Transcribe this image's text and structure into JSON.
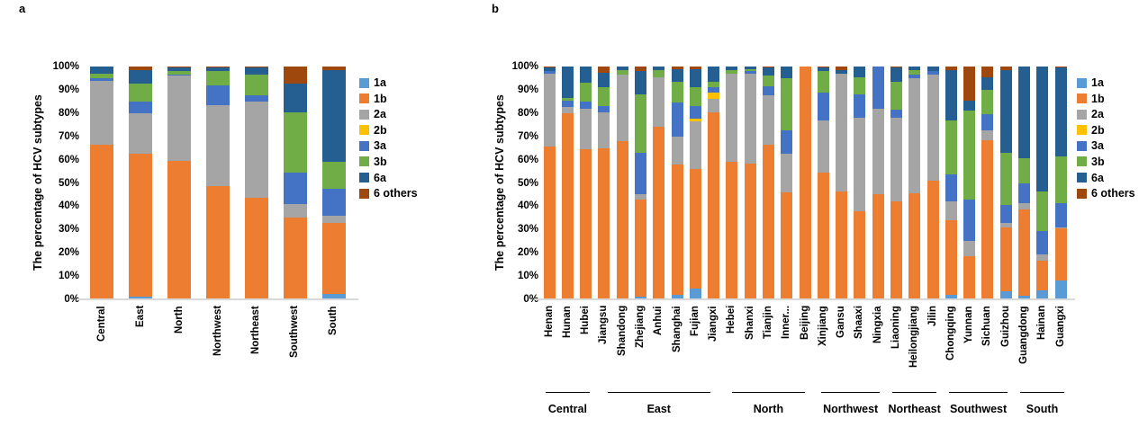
{
  "panels": {
    "a": {
      "letter": "a"
    },
    "b": {
      "letter": "b"
    }
  },
  "axis": {
    "ylabel": "The percentage of HCV subtypes",
    "yticks": [
      "100%",
      "90%",
      "80%",
      "70%",
      "60%",
      "50%",
      "40%",
      "30%",
      "20%",
      "10%",
      "0%"
    ]
  },
  "legend": [
    {
      "label": "1a",
      "color": "#5B9BD5"
    },
    {
      "label": "1b",
      "color": "#ED7D31"
    },
    {
      "label": "2a",
      "color": "#A5A5A5"
    },
    {
      "label": "2b",
      "color": "#FFC000"
    },
    {
      "label": "3a",
      "color": "#4472C4"
    },
    {
      "label": "3b",
      "color": "#70AD47"
    },
    {
      "label": "6a",
      "color": "#255E91"
    },
    {
      "label": "6 others",
      "color": "#9E480E"
    }
  ],
  "chart_data": [
    {
      "type": "bar",
      "stacked": true,
      "panel": "a",
      "title": "",
      "xlabel": "",
      "ylabel": "The percentage of HCV subtypes",
      "ylim": [
        0,
        100
      ],
      "grid": false,
      "legend_position": "right",
      "categories": [
        "Central",
        "East",
        "North",
        "Northwest",
        "Northeast",
        "Southwest",
        "South"
      ],
      "series": [
        {
          "name": "1a",
          "color": "#5B9BD5",
          "values": [
            0,
            1,
            0,
            0,
            0,
            0.5,
            2.5
          ]
        },
        {
          "name": "1b",
          "color": "#ED7D31",
          "values": [
            66.5,
            61.5,
            59.5,
            48.5,
            43.5,
            34.5,
            30.5
          ]
        },
        {
          "name": "2a",
          "color": "#A5A5A5",
          "values": [
            27.5,
            17.5,
            36.5,
            35,
            41.5,
            6,
            3
          ]
        },
        {
          "name": "2b",
          "color": "#FFC000",
          "values": [
            0,
            0,
            0,
            0,
            0,
            0,
            0
          ]
        },
        {
          "name": "3a",
          "color": "#4472C4",
          "values": [
            1,
            5,
            0.5,
            8.5,
            2.5,
            13.5,
            11.5
          ]
        },
        {
          "name": "3b",
          "color": "#70AD47",
          "values": [
            2,
            7.5,
            1.5,
            6,
            9,
            26,
            11.5
          ]
        },
        {
          "name": "6a",
          "color": "#255E91",
          "values": [
            3,
            6,
            1.5,
            1.5,
            3,
            12,
            39.5
          ]
        },
        {
          "name": "6 others",
          "color": "#9E480E",
          "values": [
            0,
            1.5,
            0.5,
            0.5,
            0.5,
            7.5,
            1.5
          ]
        }
      ]
    },
    {
      "type": "bar",
      "stacked": true,
      "panel": "b",
      "title": "",
      "xlabel": "",
      "ylabel": "The percentage of HCV subtypes",
      "ylim": [
        0,
        100
      ],
      "grid": false,
      "legend_position": "right",
      "categories": [
        "Henan",
        "Hunan",
        "Hubei",
        "Jiangsu",
        "Shandong",
        "Zhejiang",
        "Anhui",
        "Shanghai",
        "Fujian",
        "Jiangxi",
        "Hebei",
        "Shanxi",
        "Tianjin",
        "Inner...",
        "Beijing",
        "Xinjiang",
        "Gansu",
        "Shaaxi",
        "Ningxia",
        "Liaoning",
        "Heilongjiang",
        "Jilin",
        "Chongqing",
        "Yunnan",
        "Sichuan",
        "Guizhou",
        "Guangdong",
        "Hainan",
        "Guangxi"
      ],
      "groups": [
        {
          "label": "Central",
          "count": 3
        },
        {
          "label": "East",
          "count": 7
        },
        {
          "label": "North",
          "count": 5
        },
        {
          "label": "Northwest",
          "count": 4
        },
        {
          "label": "Northeast",
          "count": 3
        },
        {
          "label": "Southwest",
          "count": 4
        },
        {
          "label": "South",
          "count": 3
        }
      ],
      "series": [
        {
          "name": "1a",
          "color": "#5B9BD5",
          "values": [
            0,
            0,
            0,
            0,
            0,
            1,
            0,
            2,
            4.5,
            0,
            0,
            0,
            0,
            0,
            0,
            0,
            0,
            0.5,
            0,
            0,
            0,
            0,
            2,
            0,
            0,
            3.5,
            1.5,
            4,
            8
          ]
        },
        {
          "name": "1b",
          "color": "#ED7D31",
          "values": [
            65.5,
            80,
            64.5,
            65,
            68,
            42,
            74,
            56,
            51.5,
            80.5,
            59,
            58.5,
            66.5,
            46,
            100,
            54.5,
            46.5,
            37.5,
            45,
            42,
            45.5,
            51,
            32,
            18.5,
            68.5,
            27.5,
            37,
            12.5,
            22.5
          ]
        },
        {
          "name": "2a",
          "color": "#A5A5A5",
          "values": [
            31.5,
            2.5,
            17.5,
            15.5,
            28.5,
            2,
            21.5,
            12,
            20.5,
            5.5,
            38,
            38.5,
            21,
            16.5,
            0,
            22.5,
            50.5,
            40,
            37,
            36,
            49.5,
            45.5,
            8,
            6.5,
            4,
            2,
            3,
            3,
            0.5
          ]
        },
        {
          "name": "2b",
          "color": "#FFC000",
          "values": [
            0,
            0,
            0,
            0,
            0,
            0,
            0,
            0,
            1,
            3,
            0,
            0,
            0,
            0,
            0,
            0,
            0,
            0,
            0,
            0,
            0,
            0,
            0,
            0,
            0,
            0,
            0,
            0,
            0
          ]
        },
        {
          "name": "3a",
          "color": "#4472C4",
          "values": [
            1,
            3,
            3,
            2.5,
            0,
            18,
            0,
            14.5,
            5.5,
            2,
            0,
            1,
            4,
            10,
            0,
            12,
            0,
            10,
            18,
            3.5,
            1.5,
            1.5,
            11.5,
            18,
            7,
            7.5,
            8.5,
            10,
            10.5
          ]
        },
        {
          "name": "3b",
          "color": "#70AD47",
          "values": [
            0,
            1,
            8,
            8,
            2,
            25,
            3,
            9,
            8,
            2.5,
            1.5,
            1,
            4.5,
            22.5,
            0,
            9,
            0,
            7.5,
            0,
            12,
            2,
            0,
            23.5,
            38,
            10.5,
            22.5,
            10.5,
            17,
            20
          ]
        },
        {
          "name": "6a",
          "color": "#255E91",
          "values": [
            1.5,
            13.5,
            7,
            6.5,
            1.5,
            10,
            1.5,
            5.5,
            8,
            6.5,
            1.5,
            1,
            3.5,
            5,
            0,
            1.5,
            1.5,
            4.5,
            0,
            6,
            1.5,
            2,
            21.5,
            4.5,
            5.5,
            35.5,
            39.5,
            53.5,
            38
          ]
        },
        {
          "name": "6 others",
          "color": "#9E480E",
          "values": [
            0.5,
            0,
            0,
            2.5,
            0,
            2,
            0,
            1,
            1,
            0,
            0,
            0,
            0.5,
            0,
            0,
            0.5,
            1.5,
            0,
            0,
            0.5,
            0,
            0,
            1.5,
            14.5,
            4.5,
            1.5,
            0,
            0,
            0.5
          ]
        }
      ]
    }
  ]
}
